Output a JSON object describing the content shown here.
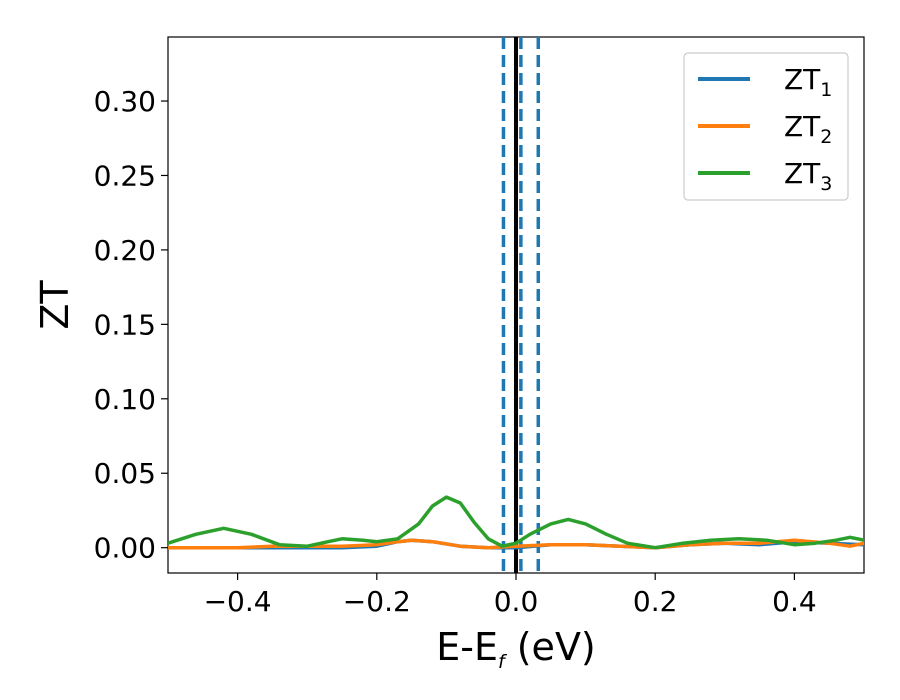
{
  "chart_data": {
    "type": "line",
    "xlabel": {
      "main": "E-E",
      "sub": "f",
      "unit": " (eV)"
    },
    "ylabel": "ZT",
    "xlim": [
      -0.5,
      0.5
    ],
    "ylim": [
      -0.017,
      0.343
    ],
    "xticks": [
      -0.4,
      -0.2,
      0.0,
      0.2,
      0.4
    ],
    "xtick_labels": [
      "−0.4",
      "−0.2",
      "0.0",
      "0.2",
      "0.4"
    ],
    "yticks": [
      0.0,
      0.05,
      0.1,
      0.15,
      0.2,
      0.25,
      0.3
    ],
    "ytick_labels": [
      "0.00",
      "0.05",
      "0.10",
      "0.15",
      "0.20",
      "0.25",
      "0.30"
    ],
    "legend_position": "top-right",
    "grid": false,
    "vertical_lines": [
      {
        "x": 0.0,
        "color": "#000000",
        "style": "solid"
      },
      {
        "x": -0.018,
        "color": "#1f77b4",
        "style": "dashed"
      },
      {
        "x": 0.007,
        "color": "#1f77b4",
        "style": "dashed"
      },
      {
        "x": 0.032,
        "color": "#1f77b4",
        "style": "dashed"
      }
    ],
    "series": [
      {
        "name": "ZT",
        "sub": "1",
        "color": "#1f77b4",
        "x": [
          -0.5,
          -0.42,
          -0.35,
          -0.3,
          -0.25,
          -0.2,
          -0.17,
          -0.15,
          -0.12,
          -0.08,
          -0.04,
          0.0,
          0.05,
          0.1,
          0.15,
          0.2,
          0.25,
          0.3,
          0.35,
          0.4,
          0.45,
          0.5
        ],
        "values": [
          0.0,
          0.0,
          0.0,
          0.0,
          0.0,
          0.001,
          0.004,
          0.005,
          0.004,
          0.001,
          0.0,
          0.0,
          0.002,
          0.002,
          0.001,
          0.0,
          0.002,
          0.003,
          0.002,
          0.004,
          0.003,
          0.002
        ]
      },
      {
        "name": "ZT",
        "sub": "2",
        "color": "#ff7f0e",
        "x": [
          -0.5,
          -0.45,
          -0.4,
          -0.35,
          -0.3,
          -0.25,
          -0.2,
          -0.17,
          -0.15,
          -0.12,
          -0.08,
          -0.04,
          0.0,
          0.05,
          0.1,
          0.15,
          0.2,
          0.25,
          0.3,
          0.35,
          0.4,
          0.45,
          0.48,
          0.5
        ],
        "values": [
          0.0,
          0.0,
          0.0,
          0.001,
          0.001,
          0.001,
          0.002,
          0.004,
          0.005,
          0.004,
          0.001,
          0.0,
          0.001,
          0.002,
          0.002,
          0.001,
          0.0,
          0.002,
          0.003,
          0.003,
          0.005,
          0.003,
          0.001,
          0.003
        ]
      },
      {
        "name": "ZT",
        "sub": "3",
        "color": "#2ca02c",
        "x": [
          -0.5,
          -0.46,
          -0.42,
          -0.38,
          -0.34,
          -0.3,
          -0.27,
          -0.25,
          -0.22,
          -0.2,
          -0.17,
          -0.14,
          -0.12,
          -0.1,
          -0.08,
          -0.06,
          -0.04,
          -0.02,
          0.0,
          0.02,
          0.05,
          0.075,
          0.1,
          0.13,
          0.16,
          0.2,
          0.24,
          0.28,
          0.32,
          0.36,
          0.4,
          0.43,
          0.46,
          0.48,
          0.5
        ],
        "values": [
          0.003,
          0.009,
          0.013,
          0.009,
          0.002,
          0.001,
          0.004,
          0.006,
          0.005,
          0.004,
          0.006,
          0.016,
          0.028,
          0.034,
          0.03,
          0.017,
          0.006,
          0.001,
          0.003,
          0.009,
          0.016,
          0.019,
          0.016,
          0.009,
          0.003,
          0.0,
          0.003,
          0.005,
          0.006,
          0.005,
          0.002,
          0.003,
          0.005,
          0.007,
          0.005
        ]
      }
    ]
  }
}
